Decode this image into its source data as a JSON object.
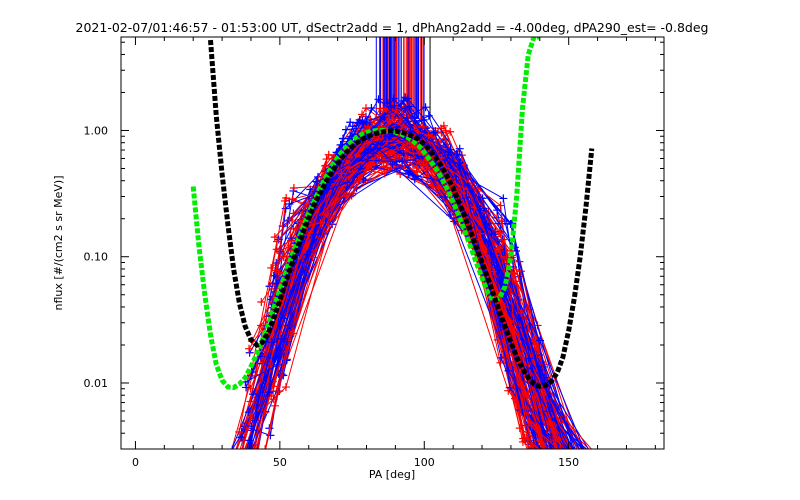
{
  "chart_data": {
    "type": "line",
    "title": "2021-02-07/01:46:57 - 01:53:00 UT, dSectr2add = 1, dPhAng2add = -4.00deg, dPA290_est=  -0.8deg",
    "xlabel": "PA [deg]",
    "ylabel": "nflux [#/(cm2 s sr MeV)]",
    "xlim": [
      -5,
      183
    ],
    "ylim": [
      0.003,
      5.5
    ],
    "yscale": "log",
    "grid": false,
    "x_ticks": [
      0,
      50,
      100,
      150
    ],
    "x_tick_labels": [
      "0",
      "50",
      "100",
      "150"
    ],
    "y_ticks": [
      0.01,
      0.1,
      1.0
    ],
    "y_tick_labels": [
      "0.01",
      "0.10",
      "1.00"
    ],
    "colors": {
      "red_series": "#ff0000",
      "blue_series": "#0000ff",
      "green_fit": "#00ee00",
      "black_fit": "#000000"
    },
    "series": [
      {
        "color": "green",
        "style": "thick-dashed",
        "x": [
          20,
          22,
          24,
          26,
          28,
          30,
          32,
          34,
          36,
          38,
          40,
          42,
          44,
          46,
          48,
          50,
          52,
          54,
          56,
          58,
          60,
          62,
          64,
          66,
          68,
          70,
          72,
          74,
          76,
          78,
          80,
          82,
          84,
          86,
          88,
          90,
          92,
          94,
          96,
          98,
          100,
          102,
          104,
          106,
          108,
          110,
          112,
          114,
          116,
          118,
          120,
          122,
          124,
          126,
          128,
          130,
          132,
          134,
          136,
          138,
          140
        ],
        "y": [
          0.36,
          0.12,
          0.05,
          0.024,
          0.014,
          0.0105,
          0.0093,
          0.0092,
          0.0098,
          0.011,
          0.0135,
          0.017,
          0.022,
          0.029,
          0.04,
          0.055,
          0.074,
          0.1,
          0.13,
          0.17,
          0.22,
          0.28,
          0.35,
          0.43,
          0.52,
          0.61,
          0.7,
          0.78,
          0.86,
          0.92,
          0.96,
          0.99,
          1.0,
          1.0,
          0.99,
          0.97,
          0.94,
          0.89,
          0.83,
          0.76,
          0.67,
          0.58,
          0.5,
          0.42,
          0.34,
          0.27,
          0.21,
          0.16,
          0.12,
          0.09,
          0.068,
          0.052,
          0.045,
          0.047,
          0.058,
          0.1,
          0.3,
          1.5,
          4.0,
          5.5,
          5.5
        ]
      },
      {
        "color": "black",
        "style": "thick-dashed",
        "x": [
          26,
          28,
          30,
          32,
          34,
          36,
          38,
          40,
          42,
          44,
          46,
          48,
          50,
          52,
          54,
          56,
          58,
          60,
          62,
          64,
          66,
          68,
          70,
          72,
          74,
          76,
          78,
          80,
          82,
          84,
          86,
          88,
          90,
          92,
          94,
          96,
          98,
          100,
          102,
          104,
          106,
          108,
          110,
          112,
          114,
          116,
          118,
          120,
          122,
          124,
          126,
          128,
          130,
          132,
          134,
          136,
          138,
          140,
          142,
          144,
          146,
          148,
          150,
          152,
          154,
          156,
          158
        ],
        "y": [
          5.2,
          1.3,
          0.45,
          0.18,
          0.08,
          0.043,
          0.028,
          0.022,
          0.02,
          0.021,
          0.025,
          0.033,
          0.045,
          0.062,
          0.085,
          0.115,
          0.155,
          0.2,
          0.26,
          0.32,
          0.39,
          0.47,
          0.55,
          0.63,
          0.71,
          0.78,
          0.84,
          0.89,
          0.93,
          0.96,
          0.98,
          0.99,
          0.99,
          0.97,
          0.94,
          0.9,
          0.85,
          0.78,
          0.7,
          0.61,
          0.52,
          0.43,
          0.35,
          0.27,
          0.21,
          0.16,
          0.12,
          0.09,
          0.068,
          0.05,
          0.037,
          0.028,
          0.021,
          0.016,
          0.013,
          0.011,
          0.0098,
          0.0094,
          0.0096,
          0.0103,
          0.012,
          0.016,
          0.026,
          0.048,
          0.1,
          0.25,
          0.72
        ]
      }
    ]
  }
}
